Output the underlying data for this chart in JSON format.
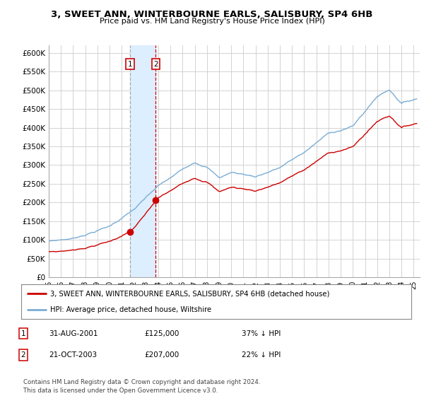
{
  "title": "3, SWEET ANN, WINTERBOURNE EARLS, SALISBURY, SP4 6HB",
  "subtitle": "Price paid vs. HM Land Registry's House Price Index (HPI)",
  "ylabel_ticks": [
    "£0",
    "£50K",
    "£100K",
    "£150K",
    "£200K",
    "£250K",
    "£300K",
    "£350K",
    "£400K",
    "£450K",
    "£500K",
    "£550K",
    "£600K"
  ],
  "ylim": [
    0,
    620000
  ],
  "yticks": [
    0,
    50000,
    100000,
    150000,
    200000,
    250000,
    300000,
    350000,
    400000,
    450000,
    500000,
    550000,
    600000
  ],
  "xlim_start": 1995.0,
  "xlim_end": 2025.5,
  "sale1_date": 2001.667,
  "sale1_price": 125000,
  "sale1_label": "1",
  "sale2_date": 2003.8,
  "sale2_price": 207000,
  "sale2_label": "2",
  "background_color": "#ffffff",
  "grid_color": "#cccccc",
  "hpi_color": "#7aadd4",
  "sale_color": "#cc0000",
  "highlight_color": "#ddeeff",
  "marker_color": "#cc0000",
  "legend_line1": "3, SWEET ANN, WINTERBOURNE EARLS, SALISBURY, SP4 6HB (detached house)",
  "legend_line2": "HPI: Average price, detached house, Wiltshire",
  "table_row1": [
    "1",
    "31-AUG-2001",
    "£125,000",
    "37% ↓ HPI"
  ],
  "table_row2": [
    "2",
    "21-OCT-2003",
    "£207,000",
    "22% ↓ HPI"
  ],
  "footnote": "Contains HM Land Registry data © Crown copyright and database right 2024.\nThis data is licensed under the Open Government Licence v3.0."
}
